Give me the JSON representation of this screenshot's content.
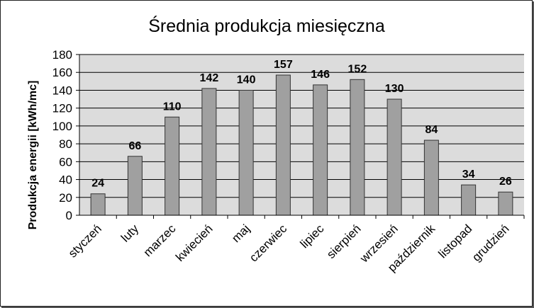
{
  "chart_data": {
    "type": "bar",
    "title": "Średnia produkcja miesięczna",
    "xlabel": "",
    "ylabel": "Produkcja energii [kWh/mc]",
    "categories": [
      "styczeń",
      "luty",
      "marzec",
      "kwiecień",
      "maj",
      "czerwiec",
      "lipiec",
      "sierpień",
      "wrzesień",
      "październik",
      "listopad",
      "grudzień"
    ],
    "values": [
      24,
      66,
      110,
      142,
      140,
      157,
      146,
      152,
      130,
      84,
      34,
      26
    ],
    "ylim": [
      0,
      180
    ],
    "yticks": [
      0,
      20,
      40,
      60,
      80,
      100,
      120,
      140,
      160,
      180
    ],
    "grid": true,
    "legend": "none",
    "colors": {
      "bar_fill": "#a0a0a0",
      "bar_stroke": "#333333",
      "plot_background": "#dcdcdc",
      "gridline": "#000000"
    }
  }
}
